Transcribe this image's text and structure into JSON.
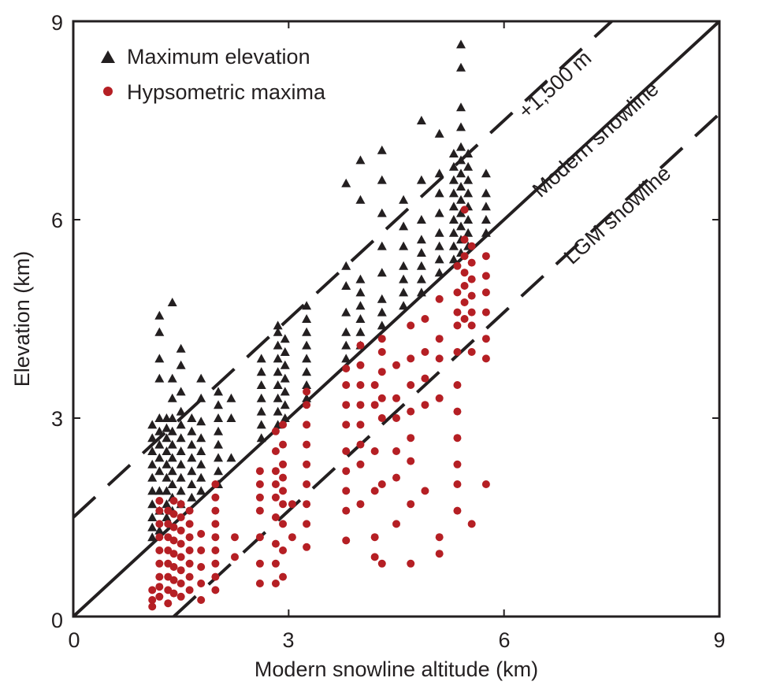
{
  "chart_data": {
    "type": "scatter",
    "title": "",
    "xlabel": "Modern snowline altitude (km)",
    "ylabel": "Elevation (km)",
    "xlim": [
      0,
      9
    ],
    "ylim": [
      0,
      9
    ],
    "xticks": [
      "0",
      "3",
      "6",
      "9"
    ],
    "yticks": [
      "0",
      "3",
      "6",
      "9"
    ],
    "grid": false,
    "legend_placement": "top-left",
    "colors": {
      "max_elevation": "#231f20",
      "hypsometric": "#b51f24",
      "axis": "#231f20"
    },
    "legend": [
      {
        "label": "Maximum elevation",
        "marker": "triangle",
        "color": "#231f20"
      },
      {
        "label": "Hypsometric maxima",
        "marker": "circle",
        "color": "#b51f24"
      }
    ],
    "reference_lines": [
      {
        "name": "+1,500 m",
        "label": "+1,500 m",
        "intercept": 1.5,
        "slope": 1,
        "style": "dashed"
      },
      {
        "name": "Modern snowline",
        "label": "Modern snowline",
        "intercept": 0,
        "slope": 1,
        "style": "solid"
      },
      {
        "name": "LGM snowline",
        "label": "LGM snowline",
        "intercept": -1.4,
        "slope": 1,
        "style": "dashed"
      }
    ],
    "series": [
      {
        "name": "Maximum elevation",
        "marker": "triangle",
        "clusters": [
          {
            "x": 1.1,
            "y_values": [
              1.2,
              1.35,
              1.5,
              1.7,
              1.9,
              2.1,
              2.3,
              2.5,
              2.7,
              2.9
            ]
          },
          {
            "x": 1.2,
            "y_values": [
              1.3,
              1.6,
              1.9,
              2.2,
              2.4,
              2.6,
              2.8,
              3.0,
              3.6,
              3.9,
              4.3,
              4.55
            ]
          },
          {
            "x": 1.3,
            "y_values": [
              1.5,
              1.7,
              1.9,
              2.1,
              2.3,
              2.5,
              2.7,
              2.85,
              3.0
            ]
          },
          {
            "x": 1.38,
            "y_values": [
              1.6,
              1.8,
              2.0,
              2.2,
              2.4,
              2.6,
              2.8,
              3.0,
              3.3,
              3.6,
              4.75
            ]
          },
          {
            "x": 1.5,
            "y_values": [
              1.7,
              1.9,
              2.1,
              2.3,
              2.5,
              2.7,
              2.9,
              3.1,
              3.4,
              3.8,
              4.05
            ]
          },
          {
            "x": 1.65,
            "y_values": [
              1.8,
              2.0,
              2.2,
              2.4,
              2.6,
              2.8,
              3.0
            ]
          },
          {
            "x": 1.78,
            "y_values": [
              1.9,
              2.1,
              2.3,
              2.5,
              2.7,
              2.95,
              3.3,
              3.6
            ]
          },
          {
            "x": 2.02,
            "y_values": [
              2.0,
              2.2,
              2.4,
              2.6,
              2.8,
              3.0,
              3.2,
              3.4
            ]
          },
          {
            "x": 2.2,
            "y_values": [
              2.4,
              3.0,
              3.3
            ]
          },
          {
            "x": 2.62,
            "y_values": [
              2.7,
              2.9,
              3.1,
              3.3,
              3.5,
              3.7,
              3.9
            ]
          },
          {
            "x": 2.85,
            "y_values": [
              2.9,
              3.1,
              3.3,
              3.5,
              3.7,
              3.9,
              4.1,
              4.3,
              4.4
            ]
          },
          {
            "x": 2.95,
            "y_values": [
              3.0,
              3.2,
              3.4,
              3.6,
              3.8,
              4.0,
              4.2
            ]
          },
          {
            "x": 3.25,
            "y_values": [
              3.3,
              3.5,
              3.7,
              3.9,
              4.1,
              4.3,
              4.5,
              4.7
            ]
          },
          {
            "x": 3.8,
            "y_values": [
              3.9,
              4.1,
              4.3,
              4.6,
              5.0,
              5.3,
              6.55
            ]
          },
          {
            "x": 4.0,
            "y_values": [
              4.1,
              4.3,
              4.5,
              4.7,
              4.9,
              5.1,
              6.3,
              6.9
            ]
          },
          {
            "x": 4.3,
            "y_values": [
              4.4,
              4.6,
              4.8,
              5.2,
              5.6,
              6.1,
              6.6,
              7.05
            ]
          },
          {
            "x": 4.6,
            "y_values": [
              4.7,
              4.9,
              5.1,
              5.3,
              5.6,
              5.9,
              6.3
            ]
          },
          {
            "x": 4.85,
            "y_values": [
              4.9,
              5.1,
              5.3,
              5.5,
              5.7,
              6.0,
              6.6,
              7.5
            ]
          },
          {
            "x": 5.1,
            "y_values": [
              5.2,
              5.4,
              5.6,
              5.8,
              6.1,
              6.4,
              6.7,
              7.3
            ]
          },
          {
            "x": 5.3,
            "y_values": [
              5.4,
              5.6,
              5.8,
              6.0,
              6.2,
              6.4,
              6.6,
              6.8,
              7.0
            ]
          },
          {
            "x": 5.4,
            "y_values": [
              5.5,
              5.7,
              5.9,
              6.1,
              6.3,
              6.5,
              6.7,
              6.9,
              7.1,
              7.4,
              7.7,
              8.3,
              8.65
            ]
          },
          {
            "x": 5.5,
            "y_values": [
              5.6,
              5.8,
              6.0,
              6.2,
              6.4,
              6.6,
              6.8,
              7.0
            ]
          },
          {
            "x": 5.75,
            "y_values": [
              5.8,
              6.0,
              6.2,
              6.4,
              6.7
            ]
          }
        ]
      },
      {
        "name": "Hypsometric maxima",
        "marker": "circle",
        "clusters": [
          {
            "x": 1.1,
            "y_values": [
              0.15,
              0.25,
              0.4
            ]
          },
          {
            "x": 1.2,
            "y_values": [
              0.3,
              0.45,
              0.6,
              0.8,
              1.0,
              1.2,
              1.4,
              1.6,
              1.75
            ]
          },
          {
            "x": 1.32,
            "y_values": [
              0.2,
              0.4,
              0.6,
              0.8,
              1.0,
              1.2,
              1.4,
              1.6
            ]
          },
          {
            "x": 1.4,
            "y_values": [
              0.35,
              0.55,
              0.75,
              0.95,
              1.15,
              1.35,
              1.55,
              1.75
            ]
          },
          {
            "x": 1.5,
            "y_values": [
              0.3,
              0.5,
              0.7,
              0.9,
              1.1,
              1.3,
              1.5,
              1.7
            ]
          },
          {
            "x": 1.62,
            "y_values": [
              0.4,
              0.6,
              0.8,
              1.0,
              1.2,
              1.4,
              1.6
            ]
          },
          {
            "x": 1.78,
            "y_values": [
              0.25,
              0.5,
              0.75,
              1.0,
              1.25
            ]
          },
          {
            "x": 1.98,
            "y_values": [
              0.4,
              0.6,
              0.8,
              1.0,
              1.2,
              1.4,
              1.6,
              1.8,
              2.0
            ]
          },
          {
            "x": 2.25,
            "y_values": [
              0.9,
              1.2
            ]
          },
          {
            "x": 2.6,
            "y_values": [
              0.5,
              0.8,
              1.2,
              1.6,
              1.8,
              2.0,
              2.2
            ]
          },
          {
            "x": 2.82,
            "y_values": [
              0.5,
              0.8,
              1.1,
              1.5,
              1.8,
              2.0,
              2.2,
              2.5,
              2.8
            ]
          },
          {
            "x": 2.92,
            "y_values": [
              0.6,
              1.0,
              1.4,
              1.7,
              1.9,
              2.1,
              2.3,
              2.6,
              2.9
            ]
          },
          {
            "x": 3.05,
            "y_values": [
              1.2,
              1.7
            ]
          },
          {
            "x": 3.25,
            "y_values": [
              1.05,
              1.4,
              1.7,
              2.0,
              2.3,
              2.6,
              2.9,
              3.2,
              3.4
            ]
          },
          {
            "x": 3.8,
            "y_values": [
              1.15,
              1.6,
              1.9,
              2.2,
              2.5,
              2.9,
              3.2,
              3.5,
              3.75
            ]
          },
          {
            "x": 4.0,
            "y_values": [
              1.7,
              2.3,
              2.6,
              2.9,
              3.2,
              3.5,
              3.8,
              4.1
            ]
          },
          {
            "x": 4.2,
            "y_values": [
              0.9,
              1.2,
              1.9,
              2.5,
              3.2,
              3.5
            ]
          },
          {
            "x": 4.3,
            "y_values": [
              0.8,
              2.0,
              3.0,
              3.3,
              3.7,
              4.0,
              4.2
            ]
          },
          {
            "x": 4.5,
            "y_values": [
              1.4,
              2.1,
              2.5,
              3.0,
              3.3,
              3.8
            ]
          },
          {
            "x": 4.7,
            "y_values": [
              0.8,
              1.7,
              2.35,
              2.7,
              3.1,
              3.5,
              3.9,
              4.4
            ]
          },
          {
            "x": 4.9,
            "y_values": [
              1.9,
              3.2,
              3.6,
              4.0,
              4.5
            ]
          },
          {
            "x": 5.1,
            "y_values": [
              0.95,
              1.2,
              3.3,
              3.9,
              4.2,
              4.8
            ]
          },
          {
            "x": 5.35,
            "y_values": [
              1.6,
              2.0,
              2.3,
              2.7,
              3.1,
              3.5,
              4.0,
              4.4,
              4.6,
              4.9,
              5.3
            ]
          },
          {
            "x": 5.45,
            "y_values": [
              4.5,
              4.75,
              5.0,
              5.2,
              5.45,
              5.7,
              6.15
            ]
          },
          {
            "x": 5.55,
            "y_values": [
              1.4,
              4.0,
              4.4,
              4.6,
              4.85,
              5.1,
              5.35,
              5.6
            ]
          },
          {
            "x": 5.75,
            "y_values": [
              2.0,
              3.9,
              4.2,
              4.6,
              4.9,
              5.15,
              5.45
            ]
          }
        ]
      }
    ]
  }
}
